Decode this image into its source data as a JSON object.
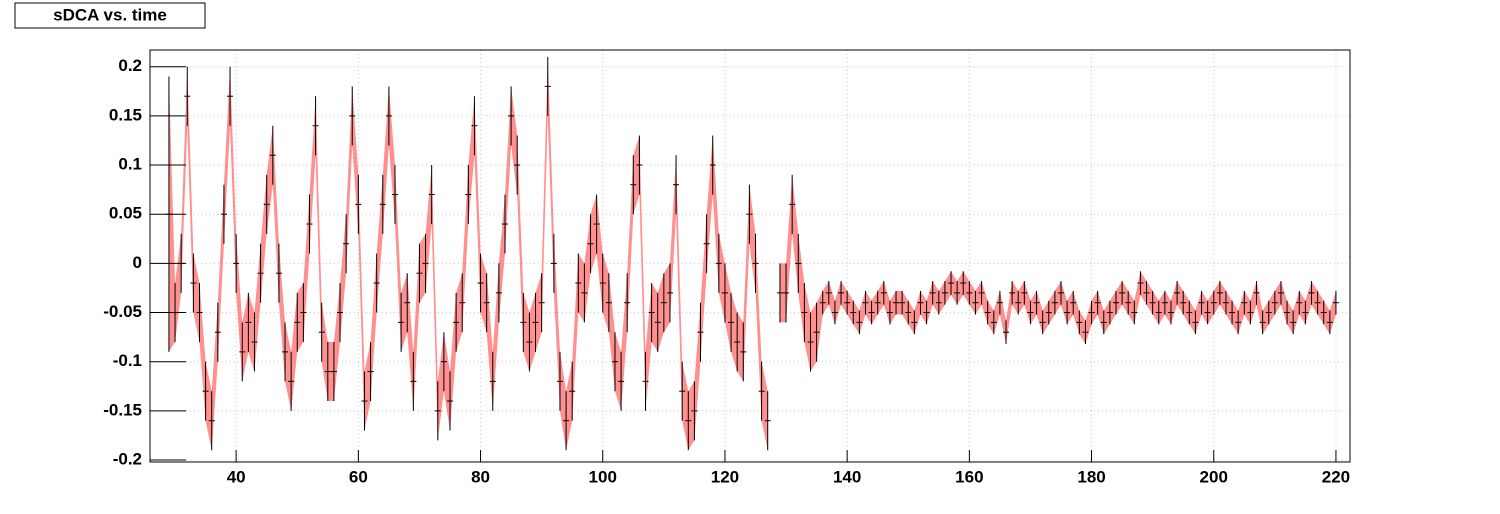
{
  "chart_data": {
    "type": "errorband",
    "title": "sDCA vs. time",
    "x": [
      29,
      30,
      31,
      32,
      33,
      34,
      35,
      36,
      37,
      38,
      39,
      40,
      41,
      42,
      43,
      44,
      45,
      46,
      47,
      48,
      49,
      50,
      51,
      52,
      53,
      54,
      55,
      56,
      57,
      58,
      59,
      60,
      61,
      62,
      63,
      64,
      65,
      66,
      67,
      68,
      69,
      70,
      71,
      72,
      73,
      74,
      75,
      76,
      77,
      78,
      79,
      80,
      81,
      82,
      83,
      84,
      85,
      86,
      87,
      88,
      89,
      90,
      91,
      92,
      93,
      94,
      95,
      96,
      97,
      98,
      99,
      100,
      101,
      102,
      103,
      104,
      105,
      106,
      107,
      108,
      109,
      110,
      111,
      112,
      113,
      114,
      115,
      116,
      117,
      118,
      119,
      120,
      121,
      122,
      123,
      124,
      125,
      126,
      127,
      128,
      129,
      130,
      131,
      132,
      133,
      134,
      135,
      136,
      137,
      138,
      139,
      140,
      141,
      142,
      143,
      144,
      145,
      146,
      147,
      148,
      149,
      150,
      151,
      152,
      153,
      154,
      155,
      156,
      157,
      158,
      159,
      160,
      161,
      162,
      163,
      164,
      165,
      166,
      167,
      168,
      169,
      170,
      171,
      172,
      173,
      174,
      175,
      176,
      177,
      178,
      179,
      180,
      181,
      182,
      183,
      184,
      185,
      186,
      187,
      188,
      189,
      190,
      191,
      192,
      193,
      194,
      195,
      196,
      197,
      198,
      199,
      200,
      201,
      202,
      203,
      204,
      205,
      206,
      207,
      208,
      209,
      210,
      211,
      212,
      213,
      214,
      215,
      216,
      217,
      218,
      219,
      220
    ],
    "values": [
      0.05,
      -0.05,
      0.0,
      0.17,
      -0.02,
      -0.05,
      -0.13,
      -0.16,
      -0.07,
      0.05,
      0.17,
      0.0,
      -0.09,
      -0.06,
      -0.08,
      -0.01,
      0.06,
      0.11,
      -0.01,
      -0.09,
      -0.12,
      -0.06,
      -0.05,
      0.04,
      0.14,
      -0.07,
      -0.11,
      -0.11,
      -0.05,
      0.02,
      0.15,
      0.06,
      -0.14,
      -0.11,
      -0.02,
      0.06,
      0.15,
      0.07,
      -0.06,
      -0.04,
      -0.12,
      -0.01,
      0.0,
      0.07,
      -0.15,
      -0.1,
      -0.14,
      -0.06,
      -0.04,
      0.07,
      0.14,
      -0.02,
      -0.04,
      -0.12,
      -0.03,
      0.04,
      0.15,
      0.1,
      -0.06,
      -0.08,
      -0.06,
      -0.04,
      0.18,
      0.0,
      -0.12,
      -0.16,
      -0.13,
      -0.02,
      -0.03,
      0.02,
      0.04,
      -0.02,
      -0.04,
      -0.1,
      -0.12,
      -0.04,
      0.08,
      0.1,
      -0.12,
      -0.05,
      -0.06,
      -0.04,
      -0.03,
      0.08,
      -0.13,
      -0.16,
      -0.15,
      -0.07,
      0.02,
      0.1,
      0.0,
      -0.03,
      -0.06,
      -0.08,
      -0.09,
      0.05,
      0.0,
      -0.13,
      -0.16,
      null,
      -0.03,
      -0.03,
      0.06,
      0.0,
      -0.05,
      -0.08,
      -0.07,
      -0.04,
      -0.03,
      -0.05,
      -0.03,
      -0.04,
      -0.05,
      -0.06,
      -0.04,
      -0.05,
      -0.04,
      -0.03,
      -0.05,
      -0.04,
      -0.04,
      -0.05,
      -0.06,
      -0.04,
      -0.05,
      -0.03,
      -0.04,
      -0.03,
      -0.02,
      -0.03,
      -0.02,
      -0.03,
      -0.04,
      -0.03,
      -0.05,
      -0.06,
      -0.04,
      -0.07,
      -0.03,
      -0.04,
      -0.03,
      -0.05,
      -0.04,
      -0.06,
      -0.05,
      -0.04,
      -0.03,
      -0.05,
      -0.04,
      -0.06,
      -0.07,
      -0.05,
      -0.04,
      -0.06,
      -0.05,
      -0.04,
      -0.03,
      -0.04,
      -0.05,
      -0.02,
      -0.03,
      -0.04,
      -0.05,
      -0.04,
      -0.05,
      -0.03,
      -0.04,
      -0.05,
      -0.06,
      -0.04,
      -0.05,
      -0.04,
      -0.03,
      -0.04,
      -0.05,
      -0.06,
      -0.04,
      -0.05,
      -0.03,
      -0.06,
      -0.05,
      -0.04,
      -0.03,
      -0.05,
      -0.06,
      -0.04,
      -0.05,
      -0.03,
      -0.04,
      -0.05,
      -0.06,
      -0.04
    ],
    "errors": [
      0.14,
      0.03,
      0.03,
      0.03,
      0.03,
      0.03,
      0.03,
      0.03,
      0.03,
      0.03,
      0.03,
      0.03,
      0.03,
      0.03,
      0.03,
      0.03,
      0.03,
      0.03,
      0.03,
      0.03,
      0.03,
      0.03,
      0.03,
      0.03,
      0.03,
      0.03,
      0.03,
      0.03,
      0.03,
      0.03,
      0.03,
      0.03,
      0.03,
      0.03,
      0.03,
      0.03,
      0.03,
      0.03,
      0.03,
      0.03,
      0.03,
      0.03,
      0.03,
      0.03,
      0.03,
      0.03,
      0.03,
      0.03,
      0.03,
      0.03,
      0.03,
      0.03,
      0.03,
      0.03,
      0.03,
      0.03,
      0.03,
      0.03,
      0.03,
      0.03,
      0.03,
      0.03,
      0.03,
      0.03,
      0.03,
      0.03,
      0.03,
      0.03,
      0.03,
      0.03,
      0.03,
      0.03,
      0.03,
      0.03,
      0.03,
      0.03,
      0.03,
      0.03,
      0.03,
      0.03,
      0.03,
      0.03,
      0.03,
      0.03,
      0.03,
      0.03,
      0.03,
      0.03,
      0.03,
      0.03,
      0.03,
      0.03,
      0.03,
      0.03,
      0.03,
      0.03,
      0.03,
      0.03,
      0.03,
      null,
      0.03,
      0.03,
      0.03,
      0.03,
      0.03,
      0.03,
      0.03,
      0.012,
      0.012,
      0.012,
      0.012,
      0.012,
      0.012,
      0.012,
      0.012,
      0.012,
      0.012,
      0.012,
      0.012,
      0.012,
      0.012,
      0.012,
      0.012,
      0.012,
      0.012,
      0.012,
      0.012,
      0.012,
      0.012,
      0.012,
      0.012,
      0.012,
      0.012,
      0.012,
      0.012,
      0.012,
      0.012,
      0.012,
      0.012,
      0.012,
      0.012,
      0.012,
      0.012,
      0.012,
      0.012,
      0.012,
      0.012,
      0.012,
      0.012,
      0.012,
      0.012,
      0.012,
      0.012,
      0.012,
      0.012,
      0.012,
      0.012,
      0.012,
      0.012,
      0.012,
      0.012,
      0.012,
      0.012,
      0.012,
      0.012,
      0.012,
      0.012,
      0.012,
      0.012,
      0.012,
      0.012,
      0.012,
      0.012,
      0.012,
      0.012,
      0.012,
      0.012,
      0.012,
      0.012,
      0.012,
      0.012,
      0.012,
      0.012,
      0.012,
      0.012,
      0.012,
      0.012,
      0.012,
      0.012,
      0.012,
      0.012,
      0.012
    ],
    "color": "#ff9090",
    "marker_color": "#000000",
    "xlim": [
      25.9,
      222.3
    ],
    "ylim": [
      -0.202,
      0.217
    ],
    "xticks": [
      40,
      60,
      80,
      100,
      120,
      140,
      160,
      180,
      200,
      220
    ],
    "yticks": [
      -0.2,
      -0.15,
      -0.1,
      -0.05,
      0,
      0.05,
      0.1,
      0.15,
      0.2
    ],
    "grid": true
  }
}
